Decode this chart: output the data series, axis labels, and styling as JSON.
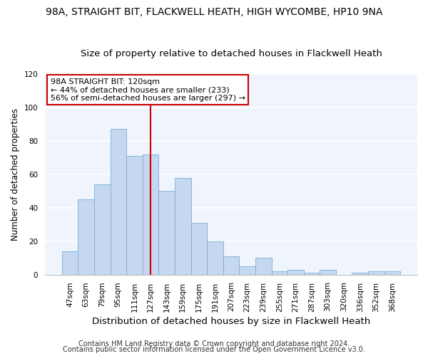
{
  "title": "98A, STRAIGHT BIT, FLACKWELL HEATH, HIGH WYCOMBE, HP10 9NA",
  "subtitle": "Size of property relative to detached houses in Flackwell Heath",
  "xlabel": "Distribution of detached houses by size in Flackwell Heath",
  "ylabel": "Number of detached properties",
  "bar_labels": [
    "47sqm",
    "63sqm",
    "79sqm",
    "95sqm",
    "111sqm",
    "127sqm",
    "143sqm",
    "159sqm",
    "175sqm",
    "191sqm",
    "207sqm",
    "223sqm",
    "239sqm",
    "255sqm",
    "271sqm",
    "287sqm",
    "303sqm",
    "320sqm",
    "336sqm",
    "352sqm",
    "368sqm"
  ],
  "bar_values": [
    14,
    45,
    54,
    87,
    71,
    72,
    50,
    58,
    31,
    20,
    11,
    5,
    10,
    2,
    3,
    1,
    3,
    0,
    1,
    2,
    2
  ],
  "bar_color": "#c5d8f0",
  "bar_edge_color": "#7aadd4",
  "vline_color": "#cc0000",
  "vline_x_label": "127sqm",
  "ylim": [
    0,
    120
  ],
  "yticks": [
    0,
    20,
    40,
    60,
    80,
    100,
    120
  ],
  "annotation_title": "98A STRAIGHT BIT: 120sqm",
  "annotation_line1": "← 44% of detached houses are smaller (233)",
  "annotation_line2": "56% of semi-detached houses are larger (297) →",
  "footer1": "Contains HM Land Registry data © Crown copyright and database right 2024.",
  "footer2": "Contains public sector information licensed under the Open Government Licence v3.0.",
  "background_color": "#ffffff",
  "plot_background": "#f0f4fc",
  "grid_color": "#ffffff",
  "title_fontsize": 10,
  "subtitle_fontsize": 9.5,
  "xlabel_fontsize": 9.5,
  "ylabel_fontsize": 8.5,
  "tick_fontsize": 7.5,
  "annotation_fontsize": 8,
  "footer_fontsize": 7
}
